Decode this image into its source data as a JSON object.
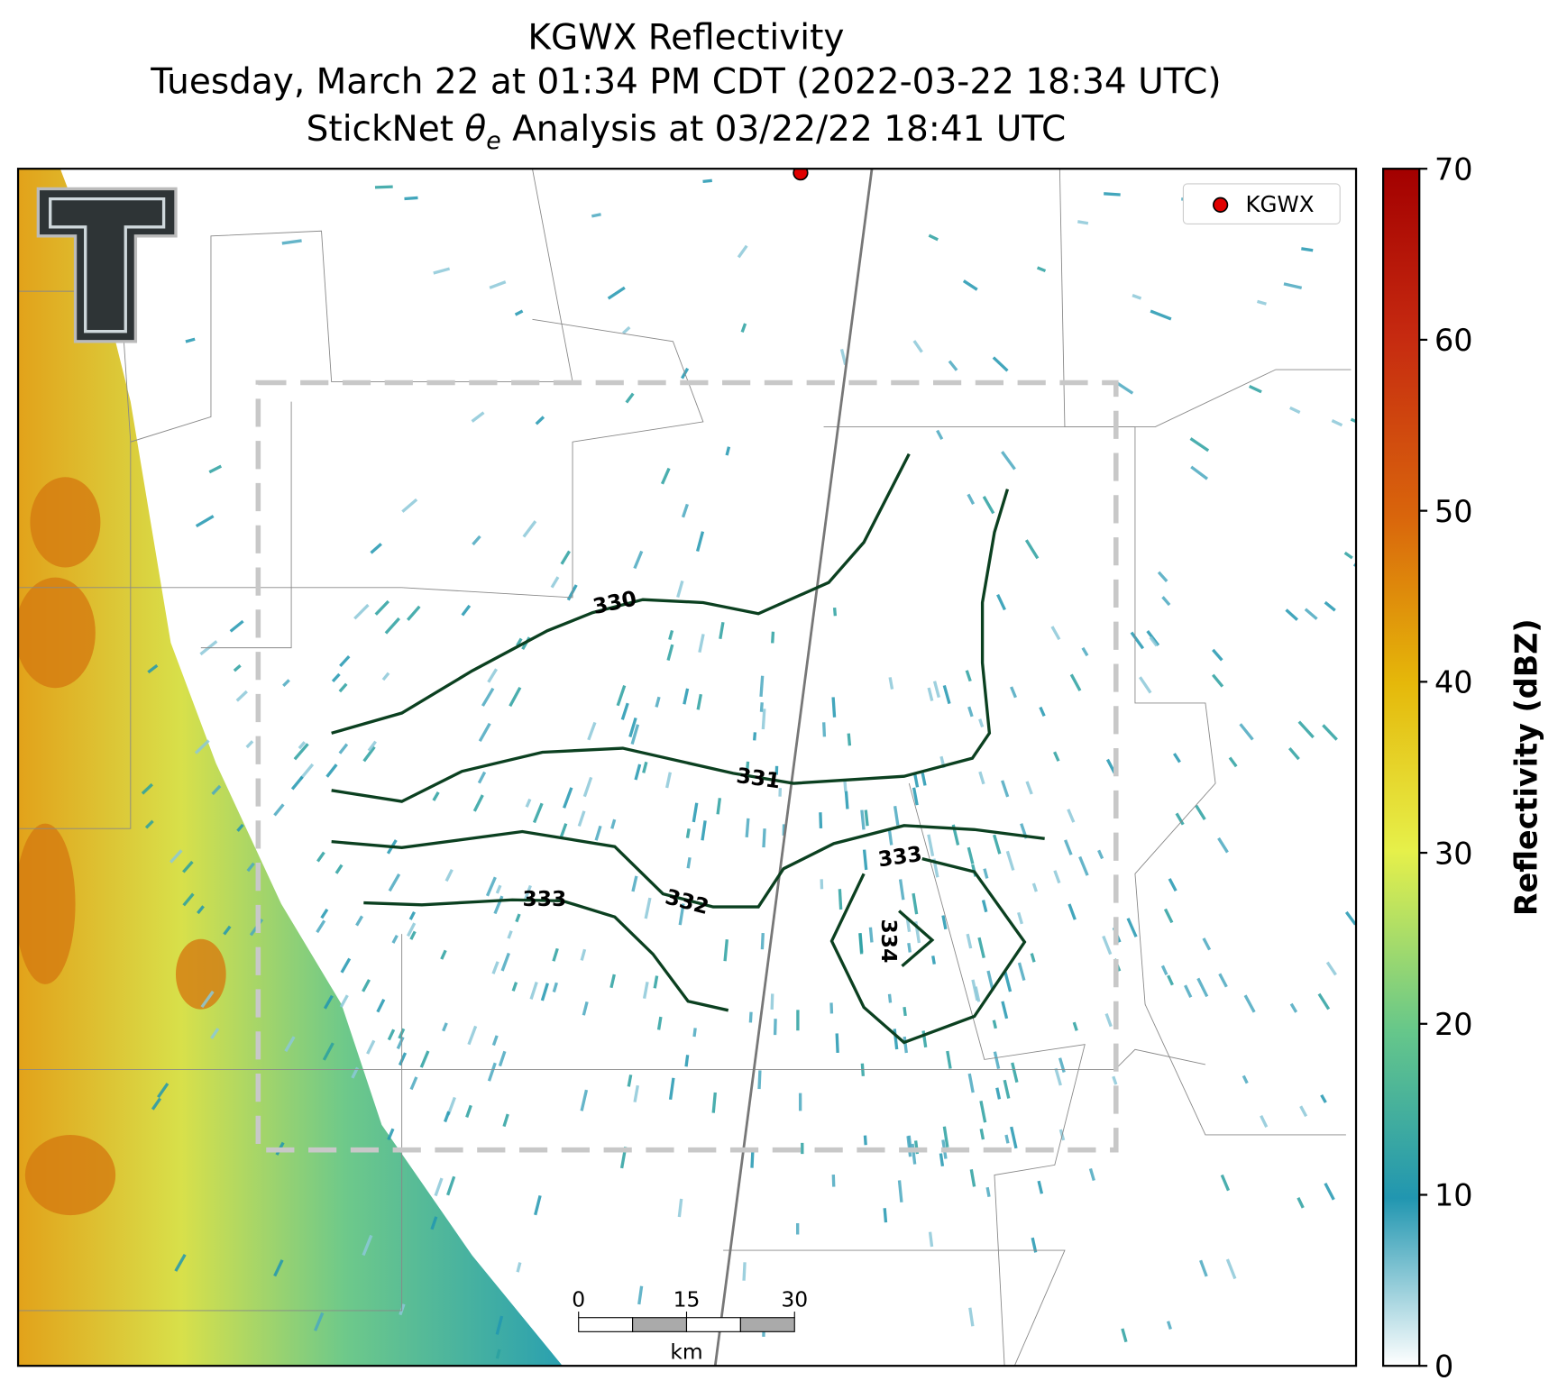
{
  "title": [
    "KGWX Reflectivity",
    "Tuesday, March 22 at 01:34 PM CDT (2022-03-22 18:34 UTC)",
    {
      "prefix": "StickNet ",
      "symbol": "θ",
      "subscript": "e",
      "suffix": " Analysis at 03/22/22 18:41 UTC"
    }
  ],
  "legend": {
    "label": "KGWX",
    "color": "#e00000"
  },
  "colorbar": {
    "label": "Reflectivity (dBZ)",
    "lim": [
      0,
      70
    ],
    "ticks": [
      0,
      10,
      20,
      30,
      40,
      50,
      60,
      70
    ]
  },
  "contours": [
    330,
    331,
    332,
    333,
    333,
    334
  ],
  "scale_bar": {
    "ticks": [
      0,
      15,
      30
    ],
    "unit": "km"
  }
}
